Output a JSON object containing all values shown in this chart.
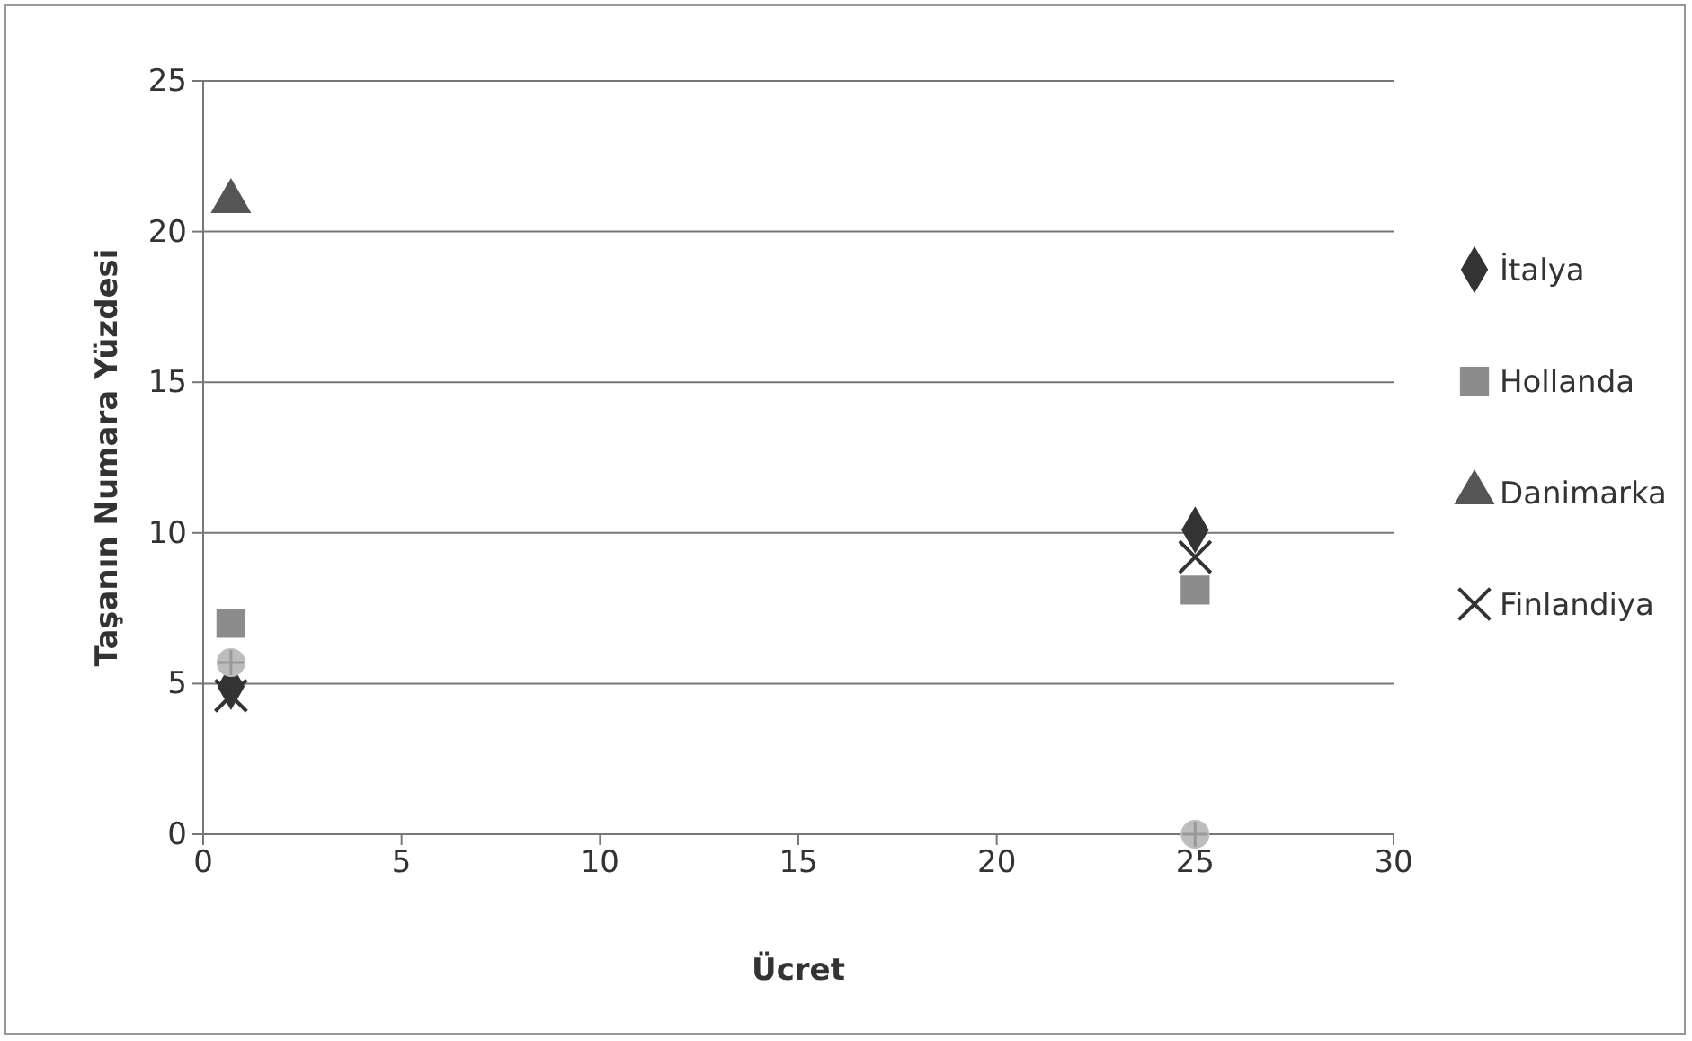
{
  "chart_data": {
    "type": "scatter",
    "xlabel": "Ücret",
    "ylabel": "Taşanın Numara Yüzdesi",
    "x": [
      0.7,
      25
    ],
    "xlim": [
      0,
      30
    ],
    "xticks": [
      0,
      5,
      10,
      15,
      20,
      25,
      30
    ],
    "ylim": [
      0,
      25
    ],
    "yticks": [
      0,
      5,
      10,
      15,
      20,
      25
    ],
    "grid": "y",
    "legend": "right",
    "series": [
      {
        "name": "İtalya",
        "color": "#333333",
        "marker": "diamond",
        "values": [
          4.9,
          10.1
        ]
      },
      {
        "name": "Hollanda",
        "color": "#8c8c8c",
        "marker": "square",
        "values": [
          7,
          8.1
        ]
      },
      {
        "name": "Danimarka",
        "color": "#555555",
        "marker": "triangle",
        "values": [
          21,
          null
        ]
      },
      {
        "name": "Finlandiya",
        "color": "#333333",
        "marker": "cross",
        "values": [
          4.6,
          9.2
        ]
      },
      {
        "color": "#bdbdbd",
        "marker": "circle",
        "values": [
          5.7,
          0
        ]
      }
    ]
  }
}
